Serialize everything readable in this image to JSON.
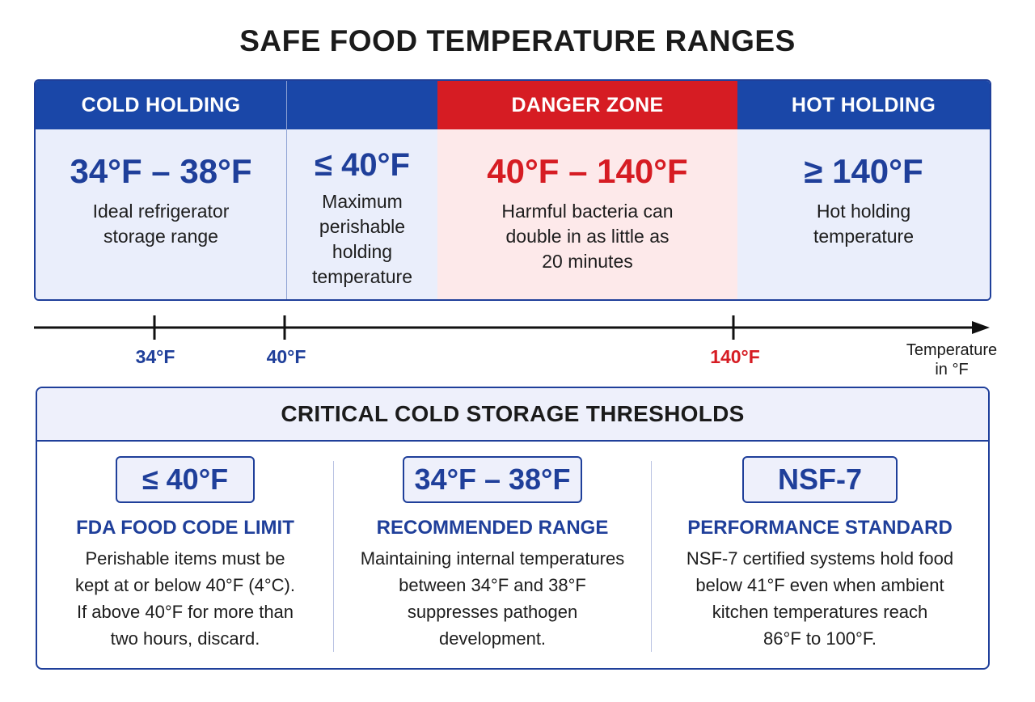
{
  "title": "SAFE FOOD TEMPERATURE RANGES",
  "colors": {
    "blue": "#1f3f9a",
    "header_blue": "#1a47a8",
    "red": "#d61c23",
    "light_blue": "#eaeefb",
    "light_red": "#fde9ea"
  },
  "ranges": [
    {
      "header": "COLD HOLDING",
      "value": "34°F – 38°F",
      "desc": [
        "Ideal refrigerator",
        "storage range"
      ]
    },
    {
      "header": "",
      "value": "≤ 40°F",
      "desc": [
        "Maximum",
        "perishable",
        "holding",
        "temperature"
      ]
    },
    {
      "header": "DANGER ZONE",
      "value": "40°F – 140°F",
      "desc": [
        "Harmful bacteria can",
        "double in as little as",
        "20 minutes"
      ]
    },
    {
      "header": "HOT HOLDING",
      "value": "≥ 140°F",
      "desc": [
        "Hot holding",
        "temperature"
      ]
    }
  ],
  "axis": {
    "ticks": [
      "34°F",
      "40°F",
      "140°F"
    ],
    "title": [
      "Temperature",
      "in °F"
    ]
  },
  "thresholds": {
    "heading": "CRITICAL COLD STORAGE THRESHOLDS",
    "cards": [
      {
        "badge": "≤ 40°F",
        "label": "FDA FOOD CODE LIMIT",
        "text": [
          "Perishable items must be",
          "kept at or below 40°F (4°C).",
          "If above 40°F for more than",
          "two hours, discard."
        ]
      },
      {
        "badge": "34°F – 38°F",
        "label": "RECOMMENDED RANGE",
        "text": [
          "Maintaining internal temperatures",
          "between 34°F and 38°F",
          "suppresses pathogen",
          "development."
        ]
      },
      {
        "badge": "NSF-7",
        "label": "PERFORMANCE STANDARD",
        "text": [
          "NSF-7 certified systems hold food",
          "below 41°F even when ambient",
          "kitchen temperatures reach",
          "86°F to 100°F."
        ]
      }
    ]
  }
}
